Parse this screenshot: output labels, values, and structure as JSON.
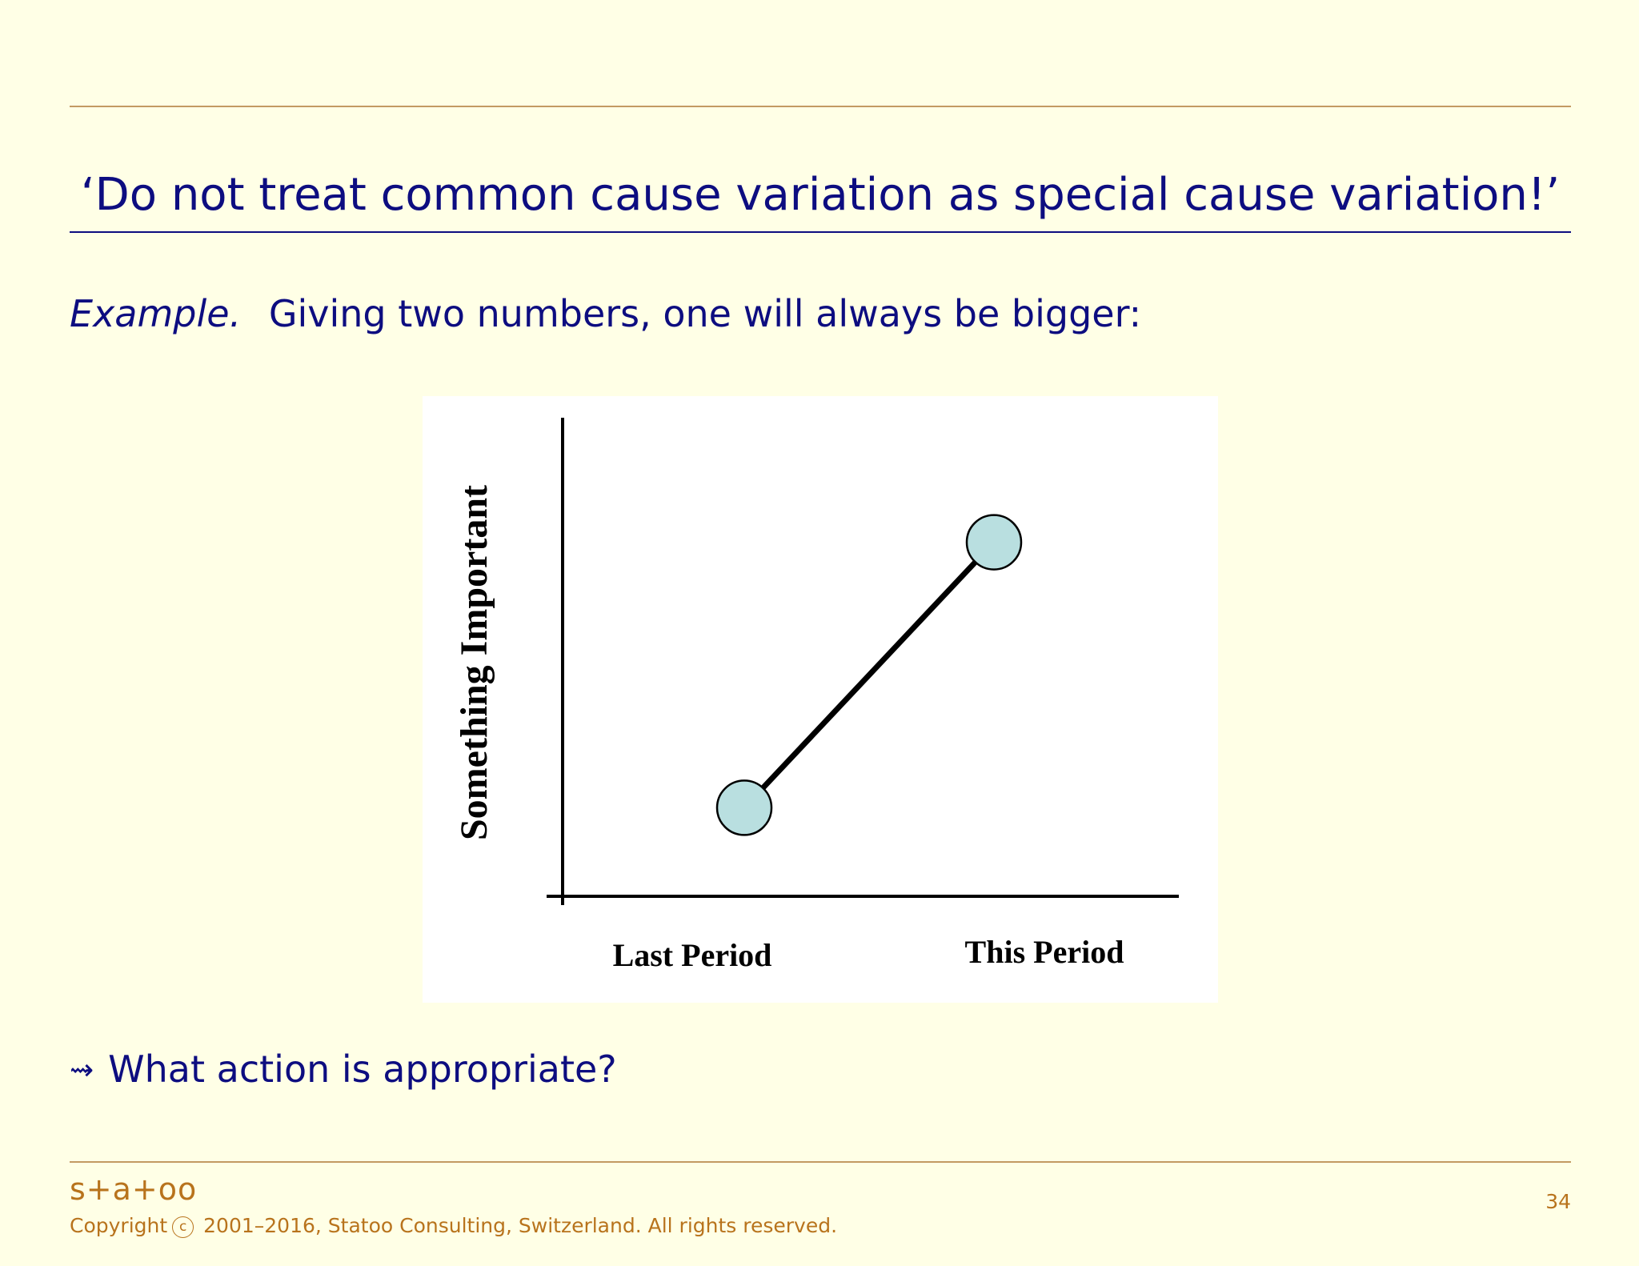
{
  "slide": {
    "title": "‘Do not treat common cause variation as special cause variation!’",
    "example_label": "Example.",
    "example_text": "Giving two numbers, one will always be bigger:",
    "question_arrow": "⇝",
    "question_text": "What action is appropriate?"
  },
  "footer": {
    "logo": "s+a+oo",
    "copyright_prefix": "Copyright",
    "copyright_symbol": "c",
    "copyright_text": "2001–2016, Statoo Consulting, Switzerland. All rights reserved.",
    "page_number": "34"
  },
  "colors": {
    "background": "#ffffe6",
    "text": "#0d0d80",
    "rule": "#c39a63",
    "footer": "#b8731c",
    "point_fill": "#b9dfe0"
  },
  "chart_data": {
    "type": "line",
    "categories": [
      "Last Period",
      "This Period"
    ],
    "series": [
      {
        "values": [
          1,
          4
        ]
      }
    ],
    "ylabel": "Something Important",
    "xlabel": "",
    "ylim": [
      0,
      5
    ],
    "grid": false,
    "legend": "none"
  }
}
